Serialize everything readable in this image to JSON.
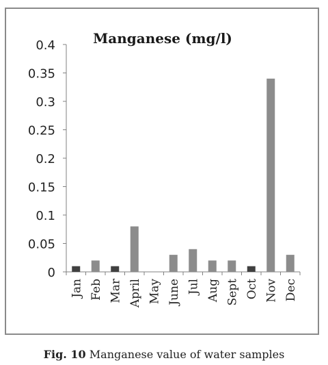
{
  "caption": {
    "fig_label": "Fig. 10",
    "text": "Manganese value of water samples"
  },
  "colors": {
    "dark_bar": "#404040",
    "grey_bar": "#8c8c8c",
    "axis": "#808080",
    "frame": "#8a8a8a"
  },
  "chart_data": {
    "type": "bar",
    "title": "Manganese (mg/l)",
    "xlabel": "",
    "ylabel": "",
    "ylim": [
      0,
      0.4
    ],
    "yticks": [
      "0.4",
      "0.35",
      "0.3",
      "0.25",
      "0.2",
      "0.15",
      "0.1",
      "0.05",
      "0"
    ],
    "categories": [
      "Jan",
      "Feb",
      "Mar",
      "April",
      "May",
      "June",
      "Jul",
      "Aug",
      "Sept",
      "Oct",
      "Nov",
      "Dec"
    ],
    "values": [
      0.01,
      0.02,
      0.01,
      0.08,
      0,
      0.03,
      0.04,
      0.02,
      0.02,
      0.01,
      0.34,
      0.03
    ],
    "bar_colors": [
      "dark",
      "grey",
      "dark",
      "grey",
      "grey",
      "grey",
      "grey",
      "grey",
      "grey",
      "dark",
      "grey",
      "grey"
    ],
    "grid": false,
    "legend": "none"
  }
}
